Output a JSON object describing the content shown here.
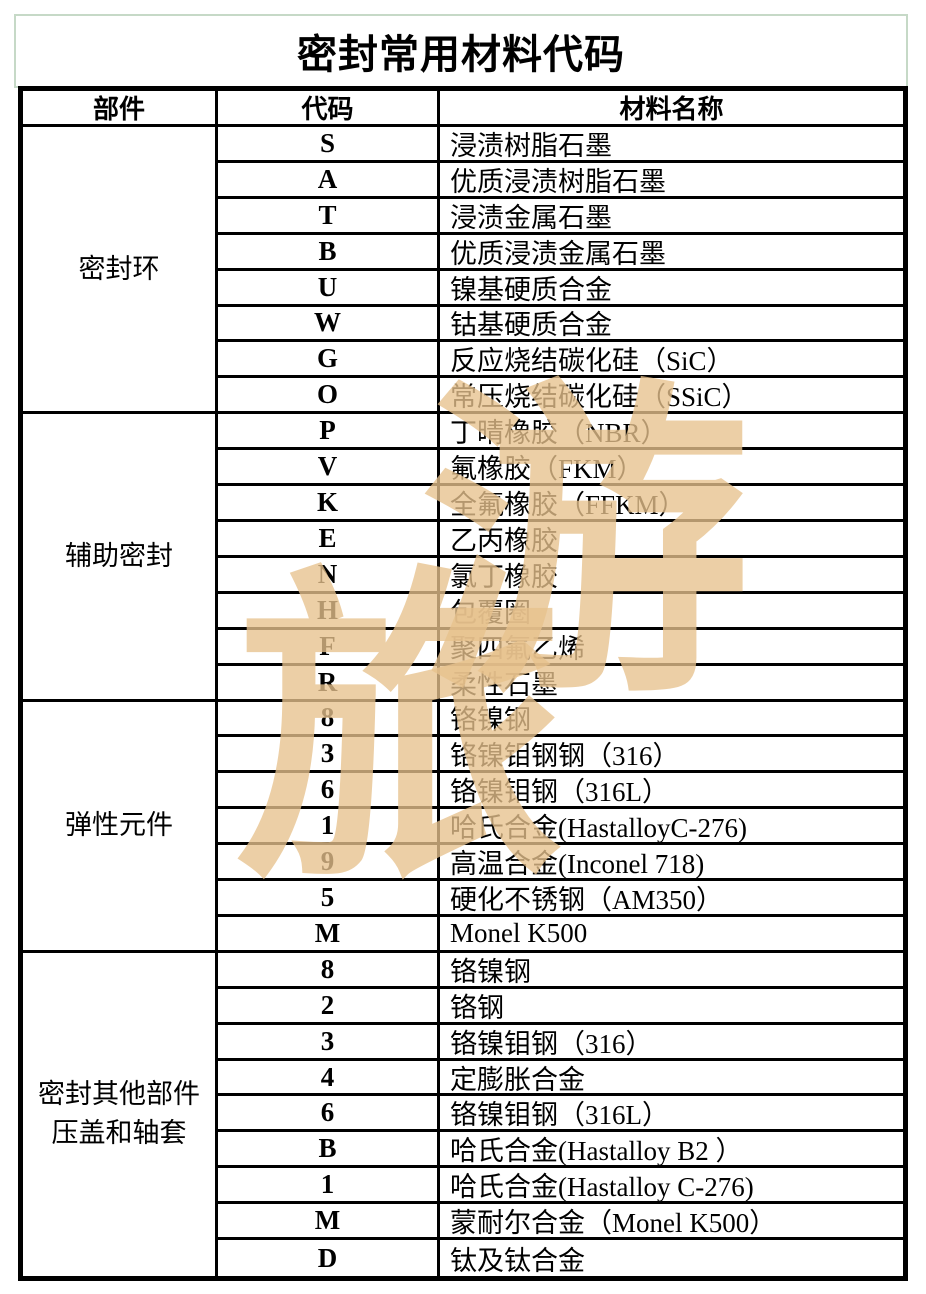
{
  "page": {
    "title": "密封常用材料代码"
  },
  "table": {
    "headers": [
      "部件",
      "代码",
      "材料名称"
    ],
    "groups": [
      {
        "part": "密封环",
        "rows": [
          [
            "S",
            "浸渍树脂石墨"
          ],
          [
            "A",
            "优质浸渍树脂石墨"
          ],
          [
            "T",
            "浸渍金属石墨"
          ],
          [
            "B",
            "优质浸渍金属石墨"
          ],
          [
            "U",
            "镍基硬质合金"
          ],
          [
            "W",
            "钴基硬质合金"
          ],
          [
            "G",
            "反应烧结碳化硅（SiC）"
          ],
          [
            "O",
            "常压烧结碳化硅（SSiC）"
          ]
        ]
      },
      {
        "part": "辅助密封",
        "rows": [
          [
            "P",
            "丁晴橡胶（NBR）"
          ],
          [
            "V",
            "氟橡胶（FKM）"
          ],
          [
            "K",
            "全氟橡胶（FFKM）"
          ],
          [
            "E",
            "乙丙橡胶"
          ],
          [
            "N",
            "氯丁橡胶"
          ],
          [
            "H",
            "包覆圈"
          ],
          [
            "F",
            "聚四氟乙烯"
          ],
          [
            "R",
            "柔性石墨"
          ]
        ]
      },
      {
        "part": "弹性元件",
        "rows": [
          [
            "8",
            "铬镍钢"
          ],
          [
            "3",
            "铬镍钼钢钢（316）"
          ],
          [
            "6",
            "铬镍钼钢（316L）"
          ],
          [
            "1",
            "哈氏合金(HastalloyC-276)"
          ],
          [
            "9",
            "高温合金(Inconel 718)"
          ],
          [
            "5",
            "硬化不锈钢（AM350）"
          ],
          [
            "M",
            "Monel K500"
          ]
        ]
      },
      {
        "part": "密封其他部件压盖和轴套",
        "rows": [
          [
            "8",
            "铬镍钢"
          ],
          [
            "2",
            "铬钢"
          ],
          [
            "3",
            "铬镍钼钢（316）"
          ],
          [
            "4",
            "定膨胀合金"
          ],
          [
            "6",
            "铬镍钼钢（316L）"
          ],
          [
            "B",
            "哈氏合金(Hastalloy B2 ）"
          ],
          [
            "1",
            "哈氏合金(Hastalloy C-276)"
          ],
          [
            "M",
            "蒙耐尔合金（Monel K500）"
          ],
          [
            "D",
            "钛及钛合金"
          ]
        ]
      }
    ]
  },
  "watermark": {
    "chars": [
      "旅",
      "游"
    ],
    "color": "rgba(231,193,141,0.78)"
  },
  "colors": {
    "title_box_border": "#c6d9c7",
    "table_border": "#000000"
  }
}
